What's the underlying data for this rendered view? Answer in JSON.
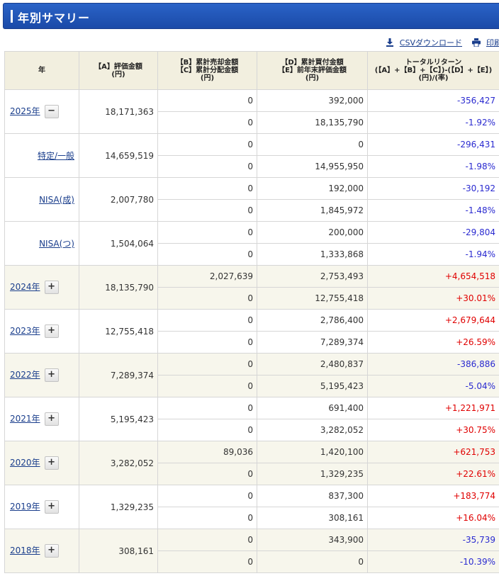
{
  "title": "年別サマリー",
  "toolbar": {
    "csv_label": "CSVダウンロード",
    "print_label": "印刷"
  },
  "headers": {
    "year": "年",
    "a": [
      "【A】評価金額",
      "(円)"
    ],
    "bc": [
      "【B】累計売却金額",
      "【C】累計分配金額",
      "(円)"
    ],
    "de": [
      "【D】累計買付金額",
      "【E】前年末評価金額",
      "(円)"
    ],
    "total": [
      "トータルリターン",
      "(【A】+【B】+【C】)-(【D】+【E】)",
      "(円)/(率)"
    ]
  },
  "colors": {
    "title_bg": "#2256b8",
    "header_bg": "#f2efdf",
    "alt_row_bg": "#f7f6ec",
    "positive": "#e00000",
    "negative": "#2a2ad0",
    "link": "#1a3e8c"
  },
  "icons": {
    "csv": "download-icon",
    "print": "printer-icon"
  },
  "rows": [
    {
      "year": "2025年",
      "toggle": "−",
      "sub": false,
      "alt": false,
      "a": "18,171,363",
      "b": "0",
      "c": "0",
      "d": "392,000",
      "e": "18,135,790",
      "ret": "-356,427",
      "rate": "-1.92%",
      "sign": "neg"
    },
    {
      "year": "特定/一般",
      "toggle": "",
      "sub": true,
      "alt": false,
      "a": "14,659,519",
      "b": "0",
      "c": "0",
      "d": "0",
      "e": "14,955,950",
      "ret": "-296,431",
      "rate": "-1.98%",
      "sign": "neg"
    },
    {
      "year": "NISA(成)",
      "toggle": "",
      "sub": true,
      "alt": false,
      "a": "2,007,780",
      "b": "0",
      "c": "0",
      "d": "192,000",
      "e": "1,845,972",
      "ret": "-30,192",
      "rate": "-1.48%",
      "sign": "neg"
    },
    {
      "year": "NISA(つ)",
      "toggle": "",
      "sub": true,
      "alt": false,
      "a": "1,504,064",
      "b": "0",
      "c": "0",
      "d": "200,000",
      "e": "1,333,868",
      "ret": "-29,804",
      "rate": "-1.94%",
      "sign": "neg"
    },
    {
      "year": "2024年",
      "toggle": "+",
      "sub": false,
      "alt": true,
      "a": "18,135,790",
      "b": "2,027,639",
      "c": "0",
      "d": "2,753,493",
      "e": "12,755,418",
      "ret": "+4,654,518",
      "rate": "+30.01%",
      "sign": "pos"
    },
    {
      "year": "2023年",
      "toggle": "+",
      "sub": false,
      "alt": false,
      "a": "12,755,418",
      "b": "0",
      "c": "0",
      "d": "2,786,400",
      "e": "7,289,374",
      "ret": "+2,679,644",
      "rate": "+26.59%",
      "sign": "pos"
    },
    {
      "year": "2022年",
      "toggle": "+",
      "sub": false,
      "alt": true,
      "a": "7,289,374",
      "b": "0",
      "c": "0",
      "d": "2,480,837",
      "e": "5,195,423",
      "ret": "-386,886",
      "rate": "-5.04%",
      "sign": "neg"
    },
    {
      "year": "2021年",
      "toggle": "+",
      "sub": false,
      "alt": false,
      "a": "5,195,423",
      "b": "0",
      "c": "0",
      "d": "691,400",
      "e": "3,282,052",
      "ret": "+1,221,971",
      "rate": "+30.75%",
      "sign": "pos"
    },
    {
      "year": "2020年",
      "toggle": "+",
      "sub": false,
      "alt": true,
      "a": "3,282,052",
      "b": "89,036",
      "c": "0",
      "d": "1,420,100",
      "e": "1,329,235",
      "ret": "+621,753",
      "rate": "+22.61%",
      "sign": "pos"
    },
    {
      "year": "2019年",
      "toggle": "+",
      "sub": false,
      "alt": false,
      "a": "1,329,235",
      "b": "0",
      "c": "0",
      "d": "837,300",
      "e": "308,161",
      "ret": "+183,774",
      "rate": "+16.04%",
      "sign": "pos"
    },
    {
      "year": "2018年",
      "toggle": "+",
      "sub": false,
      "alt": true,
      "a": "308,161",
      "b": "0",
      "c": "0",
      "d": "343,900",
      "e": "0",
      "ret": "-35,739",
      "rate": "-10.39%",
      "sign": "neg"
    }
  ]
}
